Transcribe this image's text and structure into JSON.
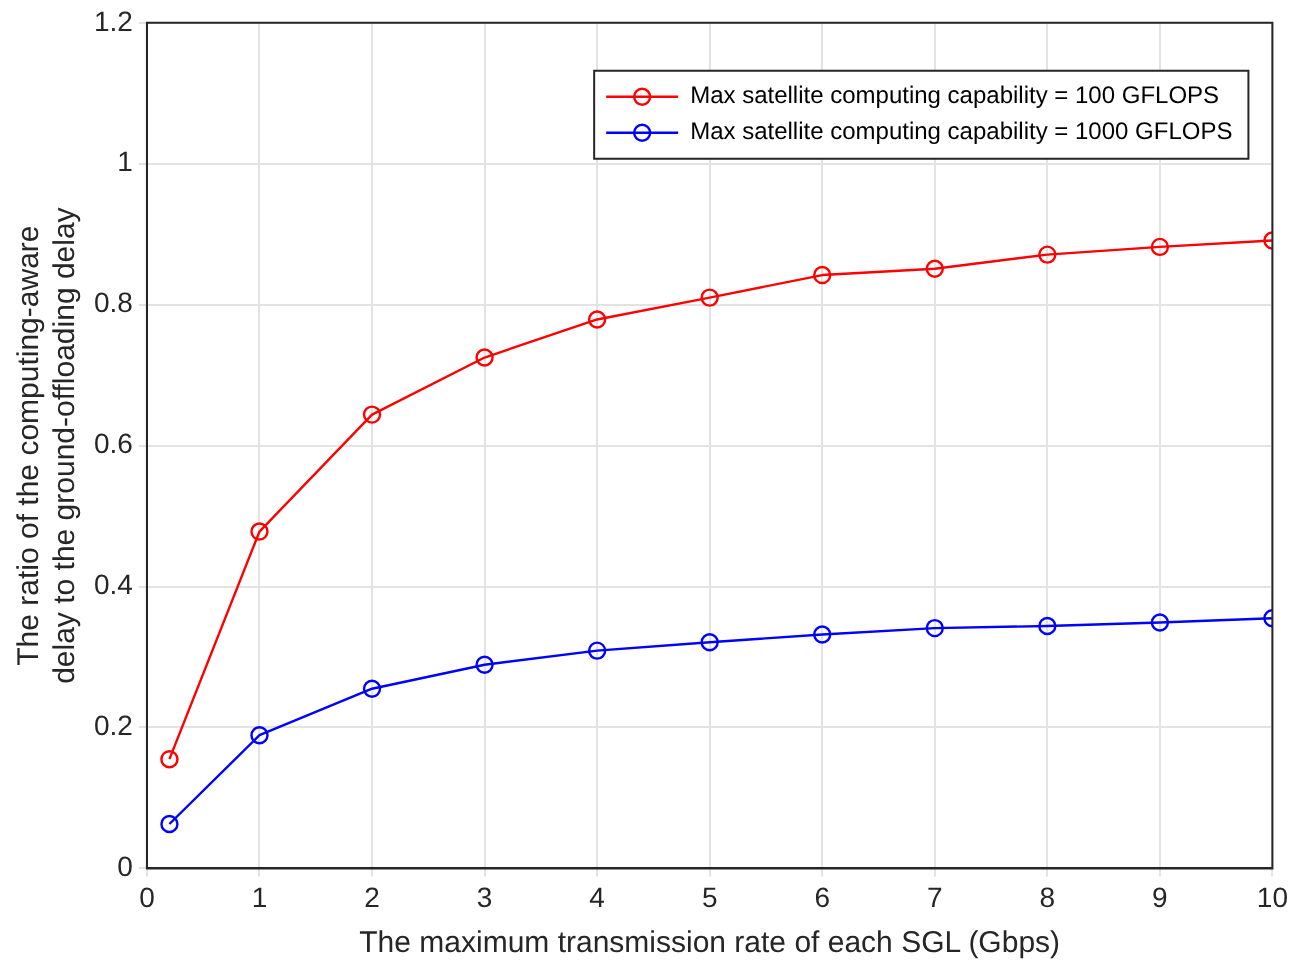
{
  "chart_data": {
    "type": "line",
    "xlabel": "The maximum transmission rate of each SGL (Gbps)",
    "ylabel": "The ratio of the computing-aware\ndelay to the ground-offloading delay",
    "x": [
      0.2,
      1,
      2,
      3,
      4,
      5,
      6,
      7,
      8,
      9,
      10
    ],
    "series": [
      {
        "name": "Max satellite computing capability = 100 GFLOPS",
        "color": "#ff0000",
        "values": [
          0.155,
          0.478,
          0.644,
          0.725,
          0.779,
          0.81,
          0.842,
          0.851,
          0.871,
          0.882,
          0.891
        ]
      },
      {
        "name": "Max satellite computing capability = 1000 GFLOPS",
        "color": "#0000ff",
        "values": [
          0.063,
          0.189,
          0.255,
          0.289,
          0.309,
          0.321,
          0.332,
          0.341,
          0.344,
          0.349,
          0.355
        ]
      }
    ],
    "xlim": [
      0,
      10
    ],
    "xticks": [
      0,
      1,
      2,
      3,
      4,
      5,
      6,
      7,
      8,
      9,
      10
    ],
    "ylim": [
      0,
      1.2
    ],
    "yticks": [
      0,
      0.2,
      0.4,
      0.6,
      0.8,
      1,
      1.2
    ],
    "grid": true,
    "legend": "top right",
    "marker": "circle",
    "line_style": "solid"
  }
}
